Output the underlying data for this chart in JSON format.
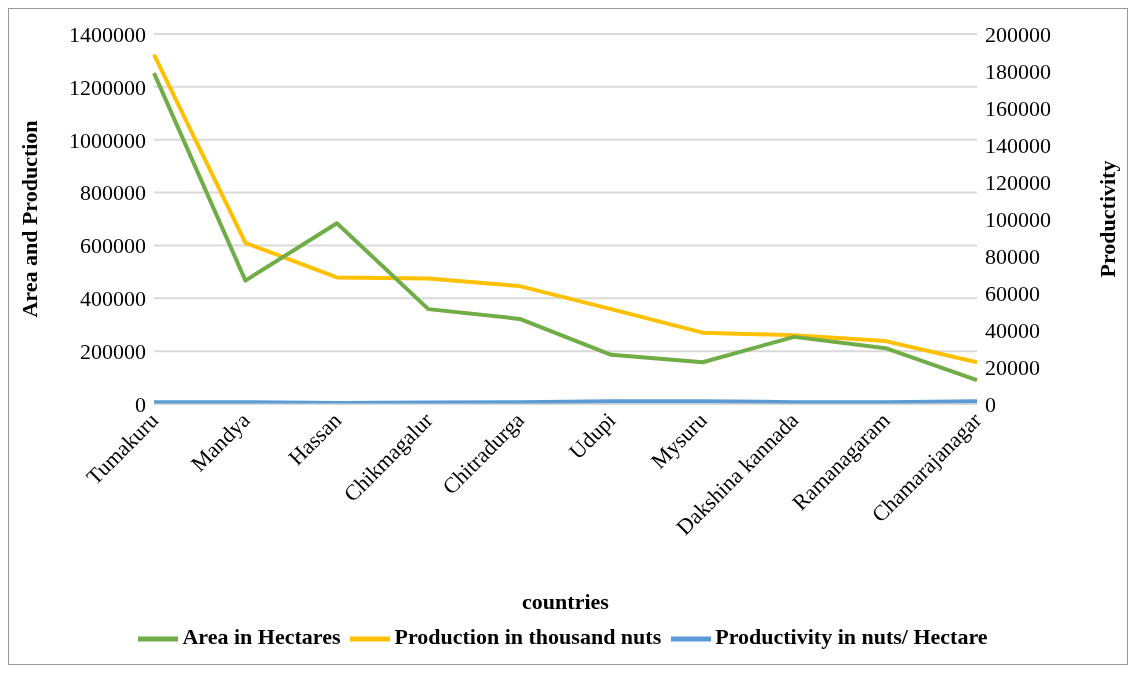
{
  "chart_data": {
    "type": "line",
    "xlabel": "countries",
    "ylabel": "Area and Production",
    "y2label": "Productivity",
    "categories": [
      "Tumakuru",
      "Mandya",
      "Hassan",
      "Chikmagalur",
      "Chitradurga",
      "Udupi",
      "Mysuru",
      "Dakshina kannada",
      "Ramanagaram",
      "Chamarajanagar"
    ],
    "series": [
      {
        "name": "Productivity in nuts/ Hectare",
        "color": "#5b9bd5",
        "axis": "y2",
        "values": [
          1000,
          1000,
          500,
          800,
          900,
          1500,
          1500,
          1000,
          1000,
          1500
        ]
      },
      {
        "name": "Production in thousand nuts",
        "color": "#ffc000",
        "values": [
          1322000,
          610000,
          479000,
          475000,
          446000,
          359000,
          270000,
          260000,
          238000,
          158000
        ]
      },
      {
        "name": "Area in Hectares",
        "color": "#70ad47",
        "values": [
          1252000,
          467000,
          684000,
          359000,
          322000,
          186000,
          158000,
          254000,
          211000,
          90000
        ]
      }
    ],
    "ylim": [
      0,
      1400000
    ],
    "yticks": [
      0,
      200000,
      400000,
      600000,
      800000,
      1000000,
      1200000,
      1400000
    ],
    "y2lim": [
      0,
      200000
    ],
    "y2ticks": [
      0,
      20000,
      40000,
      60000,
      80000,
      100000,
      120000,
      140000,
      160000,
      180000,
      200000
    ],
    "grid": "y",
    "legend": "bottom",
    "marker": "none",
    "line_style": "solid"
  }
}
